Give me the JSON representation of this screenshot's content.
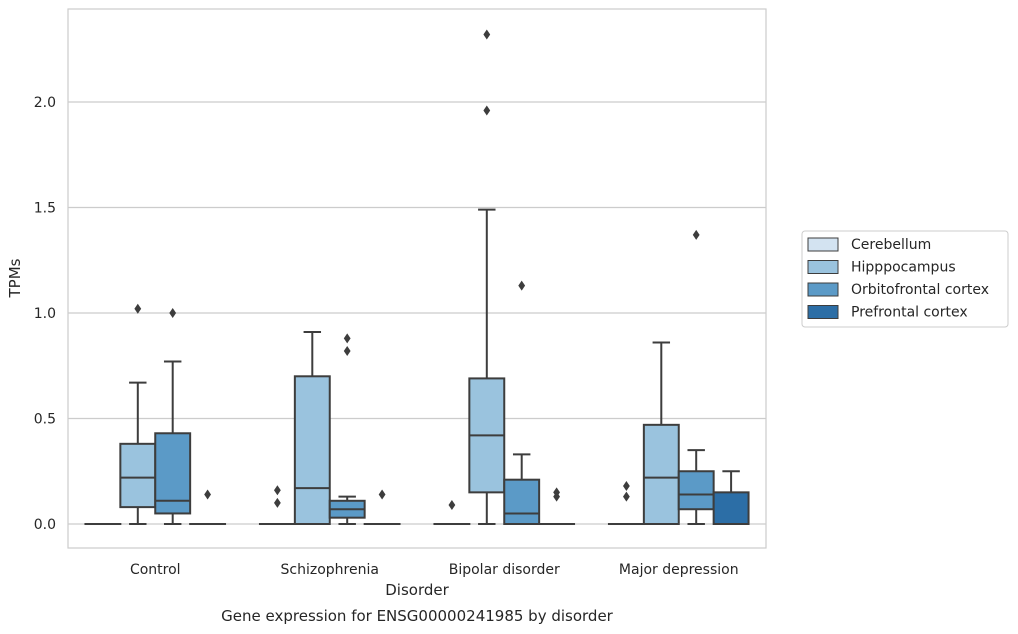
{
  "caption": "Gene expression for ENSG00000241985 by disorder",
  "chart_data": {
    "type": "box",
    "xlabel": "Disorder",
    "ylabel": "TPMs",
    "ylim": [
      -0.11,
      2.45
    ],
    "yticks": [
      0.0,
      0.5,
      1.0,
      1.5,
      2.0
    ],
    "ytick_labels": [
      "0.0",
      "0.5",
      "1.0",
      "1.5",
      "2.0"
    ],
    "categories": [
      "Control",
      "Schizophrenia",
      "Bipolar disorder",
      "Major depression"
    ],
    "grid": "horizontal",
    "legend_position": "right",
    "series": [
      {
        "name": "Cerebellum",
        "color": "#d3e3f1",
        "boxes": [
          {
            "min": 0,
            "q1": 0,
            "median": 0,
            "q3": 0,
            "max": 0,
            "outliers": []
          },
          {
            "min": 0,
            "q1": 0,
            "median": 0,
            "q3": 0,
            "max": 0,
            "outliers": [
              0.1,
              0.16
            ]
          },
          {
            "min": 0,
            "q1": 0,
            "median": 0,
            "q3": 0,
            "max": 0,
            "outliers": [
              0.09
            ]
          },
          {
            "min": 0,
            "q1": 0,
            "median": 0,
            "q3": 0,
            "max": 0,
            "outliers": [
              0.13,
              0.18
            ]
          }
        ]
      },
      {
        "name": "Hipppocampus",
        "color": "#9ac3de",
        "boxes": [
          {
            "min": 0,
            "q1": 0.08,
            "median": 0.22,
            "q3": 0.38,
            "max": 0.67,
            "outliers": [
              1.02
            ]
          },
          {
            "min": 0,
            "q1": 0,
            "median": 0.17,
            "q3": 0.7,
            "max": 0.91,
            "outliers": []
          },
          {
            "min": 0,
            "q1": 0.15,
            "median": 0.42,
            "q3": 0.69,
            "max": 1.49,
            "outliers": [
              1.96,
              2.32
            ]
          },
          {
            "min": 0,
            "q1": 0,
            "median": 0.22,
            "q3": 0.47,
            "max": 0.86,
            "outliers": []
          }
        ]
      },
      {
        "name": "Orbitofrontal cortex",
        "color": "#5b9ac7",
        "boxes": [
          {
            "min": 0,
            "q1": 0.05,
            "median": 0.11,
            "q3": 0.43,
            "max": 0.77,
            "outliers": [
              1.0
            ]
          },
          {
            "min": 0,
            "q1": 0.03,
            "median": 0.07,
            "q3": 0.11,
            "max": 0.13,
            "outliers": [
              0.82,
              0.88
            ]
          },
          {
            "min": 0,
            "q1": 0,
            "median": 0.05,
            "q3": 0.21,
            "max": 0.33,
            "outliers": [
              1.13
            ]
          },
          {
            "min": 0,
            "q1": 0.07,
            "median": 0.14,
            "q3": 0.25,
            "max": 0.35,
            "outliers": [
              1.37
            ]
          }
        ]
      },
      {
        "name": "Prefrontal cortex",
        "color": "#2c6ea6",
        "boxes": [
          {
            "min": 0,
            "q1": 0,
            "median": 0,
            "q3": 0,
            "max": 0,
            "outliers": [
              0.14
            ]
          },
          {
            "min": 0,
            "q1": 0,
            "median": 0,
            "q3": 0,
            "max": 0,
            "outliers": [
              0.14
            ]
          },
          {
            "min": 0,
            "q1": 0,
            "median": 0,
            "q3": 0,
            "max": 0,
            "outliers": [
              0.13,
              0.15
            ]
          },
          {
            "min": 0,
            "q1": 0,
            "median": 0,
            "q3": 0.15,
            "max": 0.25,
            "outliers": []
          }
        ]
      }
    ]
  }
}
